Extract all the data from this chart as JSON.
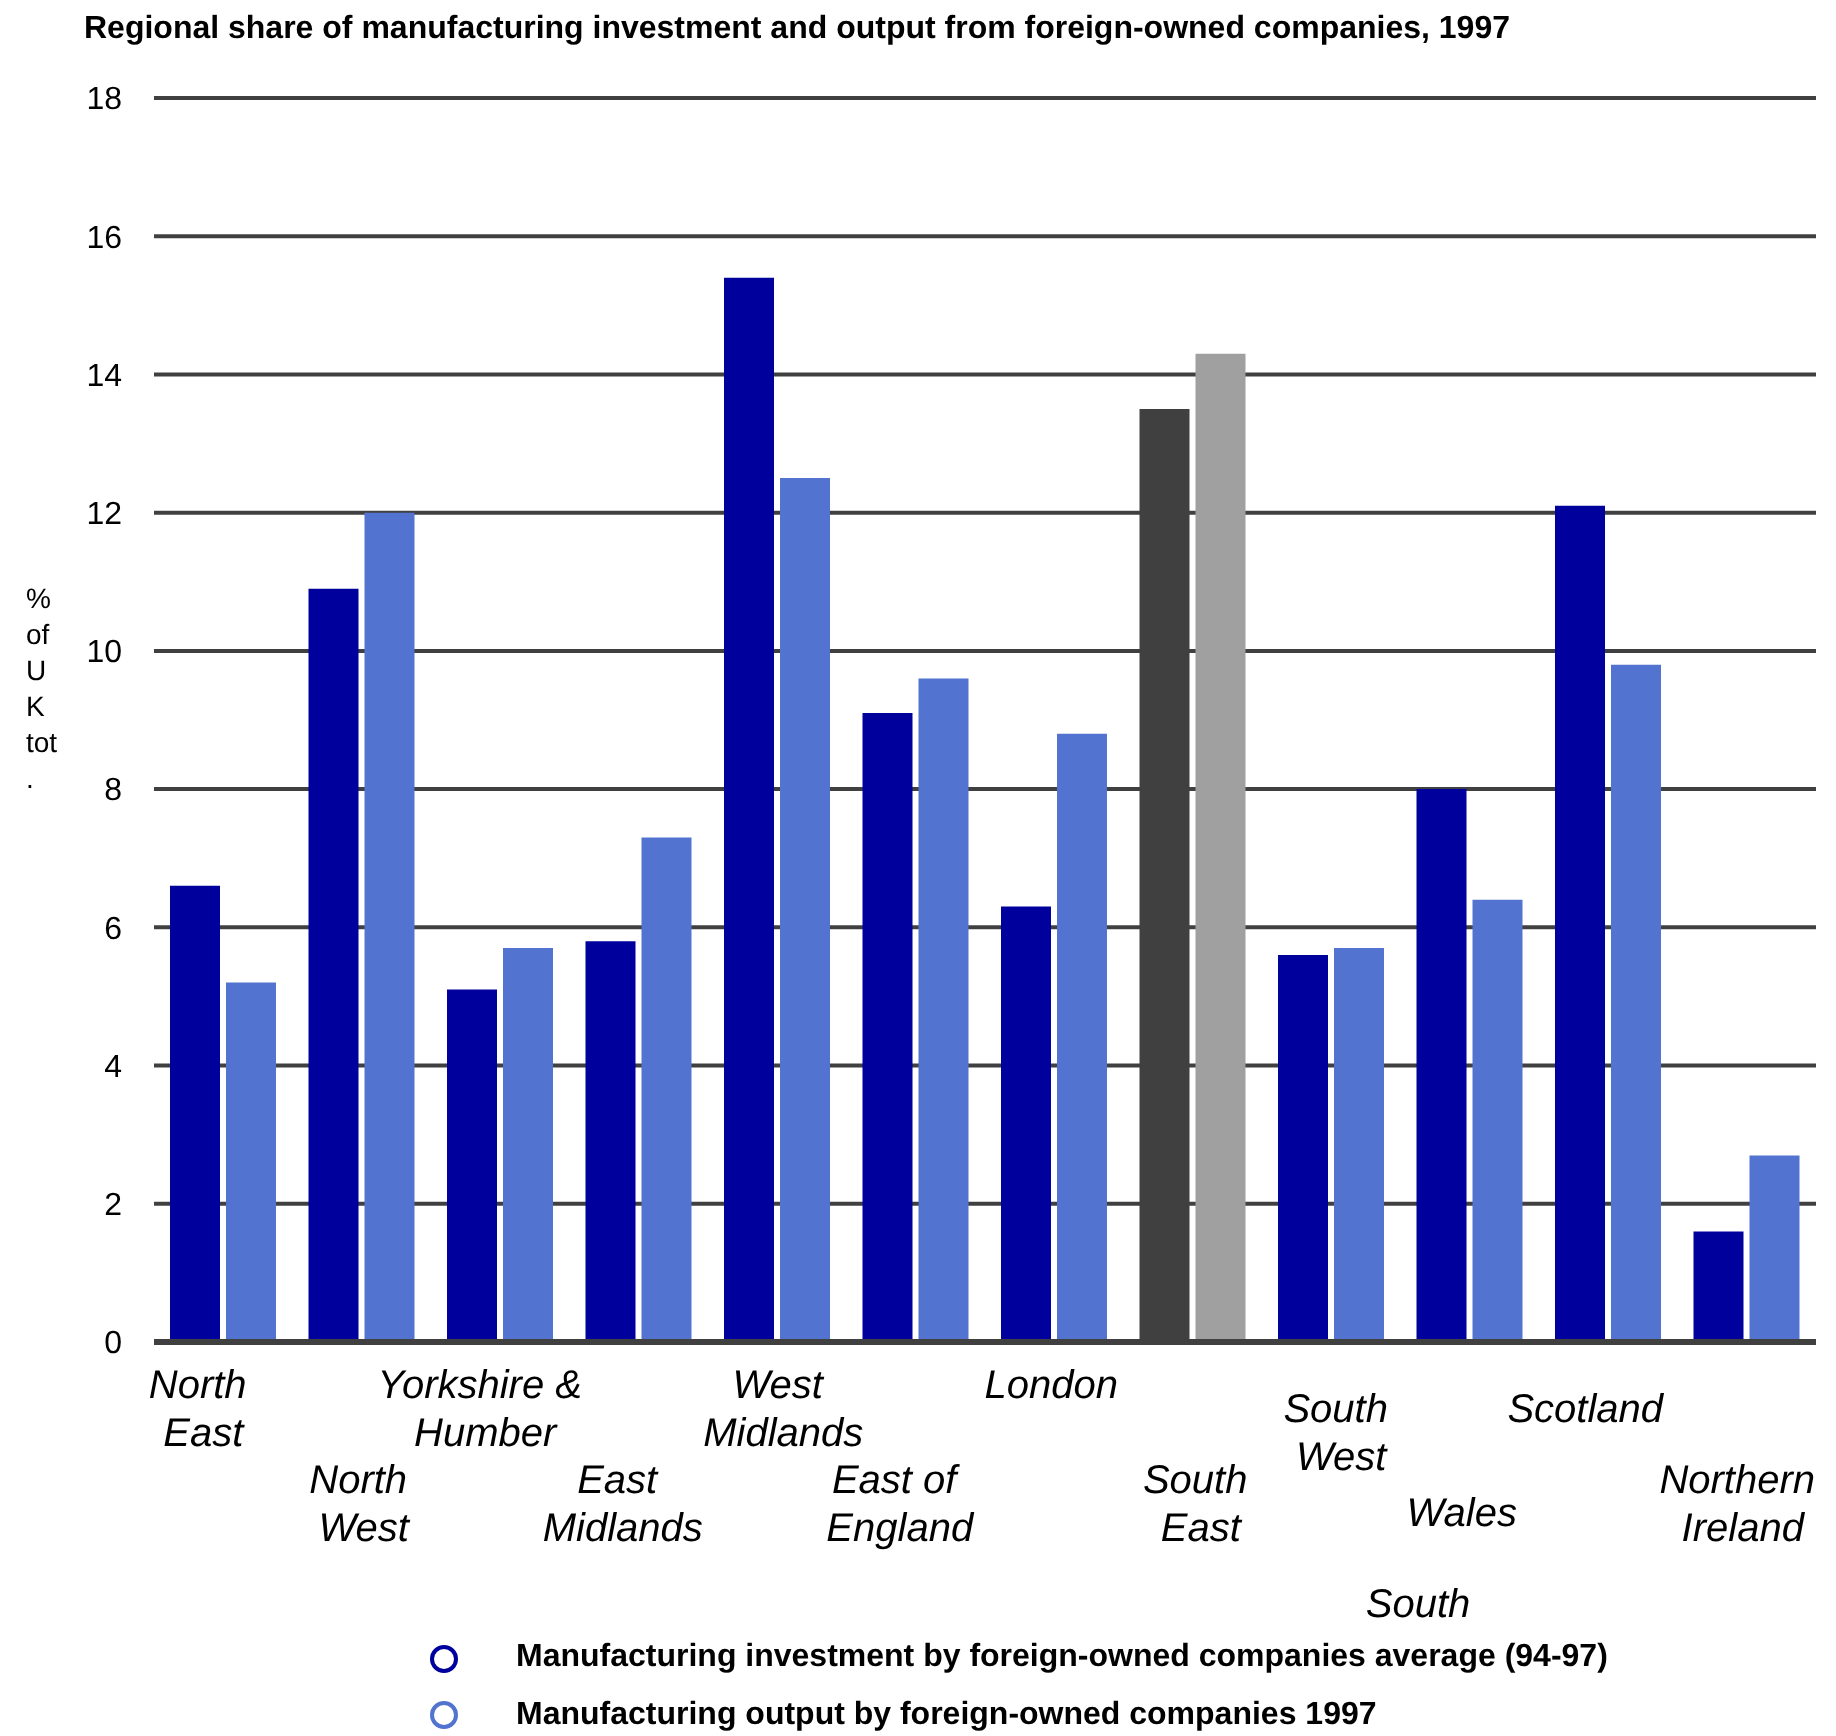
{
  "chart_data": {
    "type": "bar",
    "title": "Regional share of manufacturing investment and output from foreign-owned companies, 1997",
    "ylabel": "% of UK tot.",
    "categories": [
      "North East",
      "North West",
      "Yorkshire & Humber",
      "East Midlands",
      "West Midlands",
      "East of England",
      "London",
      "South East",
      "South West",
      "Wales",
      "Scotland",
      "Northern Ireland"
    ],
    "series": [
      {
        "name": "Manufacturing investment by foreign-owned companies average (94-97)",
        "color": "#00009c",
        "colors": [
          "#00009c",
          "#00009c",
          "#00009c",
          "#00009c",
          "#00009c",
          "#00009c",
          "#00009c",
          "#404040",
          "#00009c",
          "#00009c",
          "#00009c",
          "#00009c"
        ],
        "values": [
          6.6,
          10.9,
          5.1,
          5.8,
          15.4,
          9.1,
          6.3,
          13.5,
          5.6,
          8.0,
          12.1,
          1.6
        ]
      },
      {
        "name": "Manufacturing output by foreign-owned companies 1997",
        "color": "#5274d0",
        "colors": [
          "#5274d0",
          "#5274d0",
          "#5274d0",
          "#5274d0",
          "#5274d0",
          "#5274d0",
          "#5274d0",
          "#a0a0a0",
          "#5274d0",
          "#5274d0",
          "#5274d0",
          "#5274d0"
        ],
        "values": [
          5.2,
          12.0,
          5.7,
          7.3,
          12.5,
          9.6,
          8.8,
          14.3,
          5.7,
          6.4,
          9.8,
          2.7
        ]
      }
    ],
    "ylim": [
      0,
      18
    ],
    "yticks": [
      0,
      2,
      4,
      6,
      8,
      10,
      12,
      14,
      16,
      18
    ],
    "grid": "y",
    "legend": "bottom",
    "annotations": [
      "South"
    ]
  }
}
